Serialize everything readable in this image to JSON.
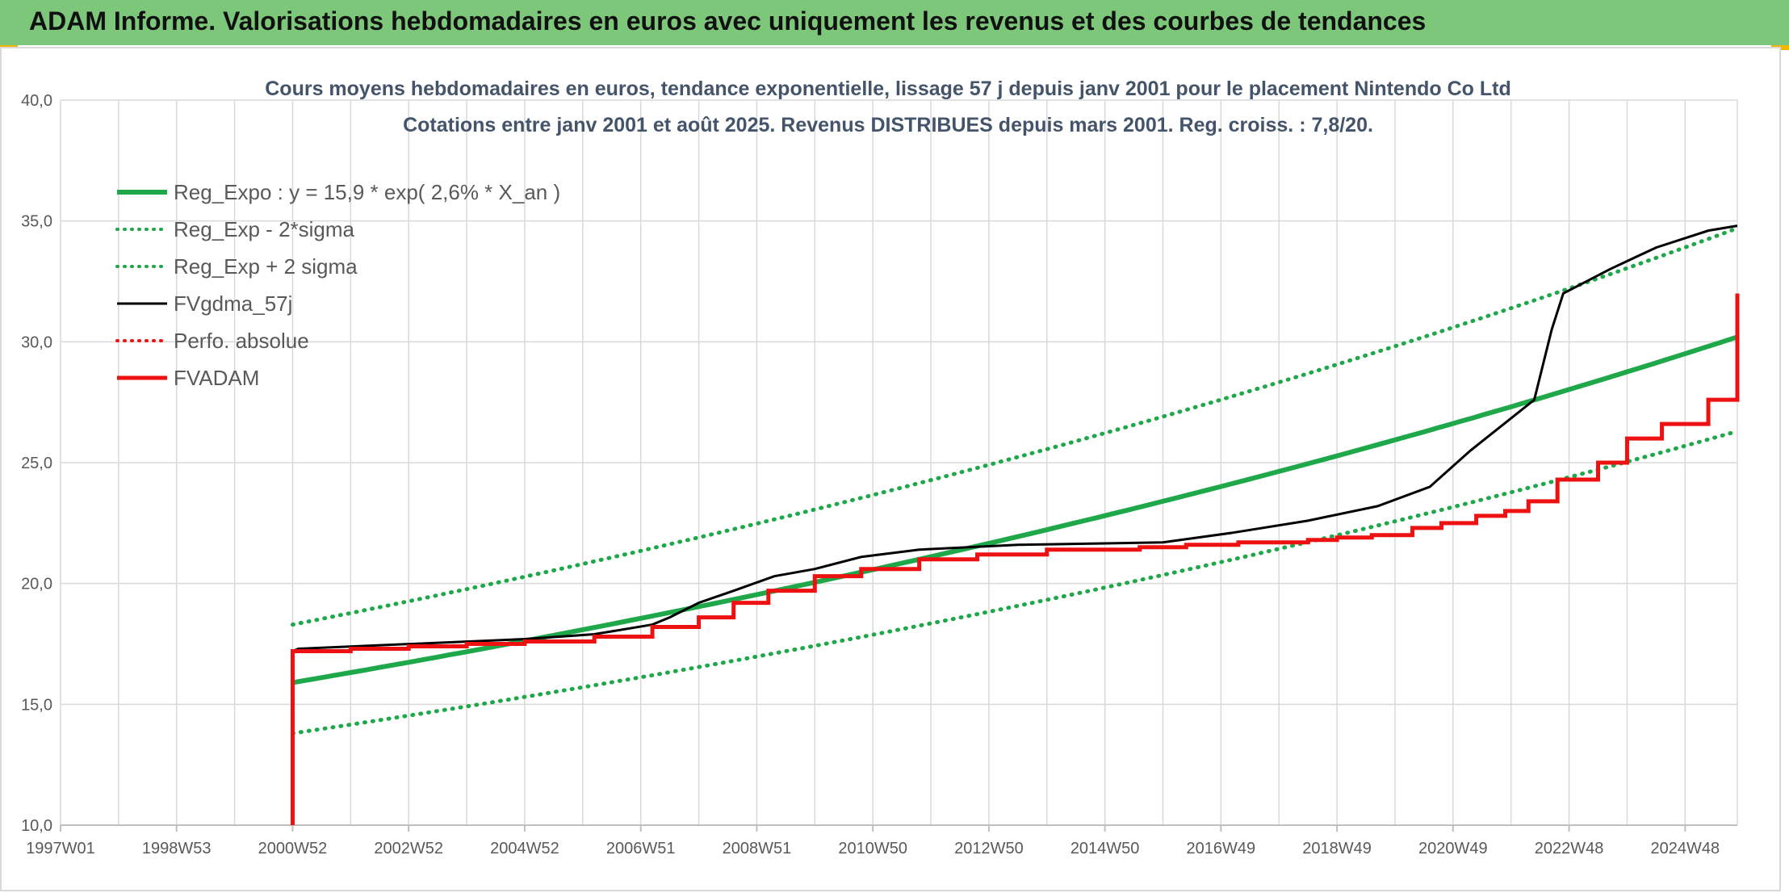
{
  "banner": {
    "title": "ADAM Informe. Valorisations hebdomadaires en euros avec uniquement les revenus et des courbes de tendances"
  },
  "colors": {
    "banner_bg": "#7dc77a",
    "reg_green": "#1ea84a",
    "sigma_green": "#1ea84a",
    "fv_black": "#000000",
    "adam_red": "#ee1111",
    "grid": "#d9d9d9",
    "accent_corner": "#f2b600"
  },
  "chart_data": {
    "type": "line",
    "title": "Cours moyens hebdomadaires en euros, tendance exponentielle, lissage 57 j depuis janv 2001 pour le placement Nintendo Co Ltd",
    "subtitle": "Cotations entre janv 2001 et août 2025. Revenus DISTRIBUES depuis mars 2001. Reg. croiss. : 7,8/20.",
    "xlabel": "",
    "ylabel": "",
    "ylim": [
      10,
      40
    ],
    "yticks": [
      "10,0",
      "15,0",
      "20,0",
      "25,0",
      "30,0",
      "35,0",
      "40,0"
    ],
    "xlim": [
      1997.0,
      2025.9
    ],
    "xticks": [
      {
        "x": 1997.0,
        "label": "1997W01"
      },
      {
        "x": 1999.0,
        "label": "1998W53"
      },
      {
        "x": 2001.0,
        "label": "2000W52"
      },
      {
        "x": 2003.0,
        "label": "2002W52"
      },
      {
        "x": 2005.0,
        "label": "2004W52"
      },
      {
        "x": 2007.0,
        "label": "2006W51"
      },
      {
        "x": 2009.0,
        "label": "2008W51"
      },
      {
        "x": 2011.0,
        "label": "2010W50"
      },
      {
        "x": 2013.0,
        "label": "2012W50"
      },
      {
        "x": 2015.0,
        "label": "2014W50"
      },
      {
        "x": 2017.0,
        "label": "2016W49"
      },
      {
        "x": 2019.0,
        "label": "2018W49"
      },
      {
        "x": 2021.0,
        "label": "2020W49"
      },
      {
        "x": 2023.0,
        "label": "2022W48"
      },
      {
        "x": 2025.0,
        "label": "2024W48"
      }
    ],
    "grid": true,
    "legend_position": "top-left",
    "series": [
      {
        "name": "Reg_Expo : y = 15,9 * exp( 2,6% *  X_an )",
        "style": "solid-thick",
        "color": "#1ea84a",
        "x": [
          2001.0,
          2005.0,
          2009.0,
          2013.0,
          2017.0,
          2021.0,
          2025.9
        ],
        "y": [
          15.9,
          17.6,
          19.5,
          21.7,
          24.0,
          26.7,
          30.2
        ]
      },
      {
        "name": "Reg_Exp - 2*sigma",
        "style": "dotted",
        "color": "#1ea84a",
        "x": [
          2001.0,
          2005.0,
          2009.0,
          2013.0,
          2017.0,
          2021.0,
          2025.9
        ],
        "y": [
          13.8,
          15.3,
          17.0,
          18.9,
          20.9,
          23.3,
          26.3
        ]
      },
      {
        "name": "Reg_Exp + 2 sigma",
        "style": "dotted",
        "color": "#1ea84a",
        "x": [
          2001.0,
          2005.0,
          2009.0,
          2013.0,
          2017.0,
          2021.0,
          2025.9
        ],
        "y": [
          18.3,
          20.3,
          22.4,
          24.9,
          27.7,
          30.7,
          34.7
        ]
      },
      {
        "name": "FVgdma_57j",
        "style": "solid",
        "color": "#000000",
        "x": [
          2001.0,
          2001.1,
          2005.0,
          2006.2,
          2007.2,
          2007.5,
          2008.0,
          2008.6,
          2009.3,
          2010.0,
          2010.8,
          2011.8,
          2013.5,
          2016.0,
          2017.2,
          2018.5,
          2019.7,
          2020.6,
          2021.3,
          2022.4,
          2022.7,
          2022.9,
          2023.7,
          2024.5,
          2025.4,
          2025.9
        ],
        "y": [
          17.2,
          17.3,
          17.7,
          17.9,
          18.3,
          18.6,
          19.2,
          19.7,
          20.3,
          20.6,
          21.1,
          21.4,
          21.6,
          21.7,
          22.1,
          22.6,
          23.2,
          24.0,
          25.5,
          27.6,
          30.5,
          32.0,
          33.0,
          33.9,
          34.6,
          34.8
        ]
      },
      {
        "name": "Perfo. absolue",
        "style": "dotted",
        "color": "#ee1111",
        "x": [],
        "y": []
      },
      {
        "name": "FVADAM",
        "style": "step-thick",
        "color": "#ee1111",
        "x": [
          2001.0,
          2001.0,
          2002.0,
          2003.0,
          2004.0,
          2005.0,
          2006.2,
          2007.2,
          2008.0,
          2008.6,
          2009.2,
          2010.0,
          2010.8,
          2011.8,
          2012.8,
          2014.0,
          2015.6,
          2016.4,
          2017.3,
          2018.5,
          2019.0,
          2019.6,
          2020.3,
          2020.8,
          2021.4,
          2021.9,
          2022.3,
          2022.8,
          2023.5,
          2024.0,
          2024.6,
          2025.4,
          2025.9
        ],
        "y": [
          10.0,
          17.2,
          17.3,
          17.4,
          17.5,
          17.6,
          17.8,
          18.2,
          18.6,
          19.2,
          19.7,
          20.3,
          20.6,
          21.0,
          21.2,
          21.4,
          21.5,
          21.6,
          21.7,
          21.8,
          21.9,
          22.0,
          22.3,
          22.5,
          22.8,
          23.0,
          23.4,
          24.3,
          25.0,
          26.0,
          26.6,
          27.6,
          32.0
        ]
      }
    ]
  }
}
